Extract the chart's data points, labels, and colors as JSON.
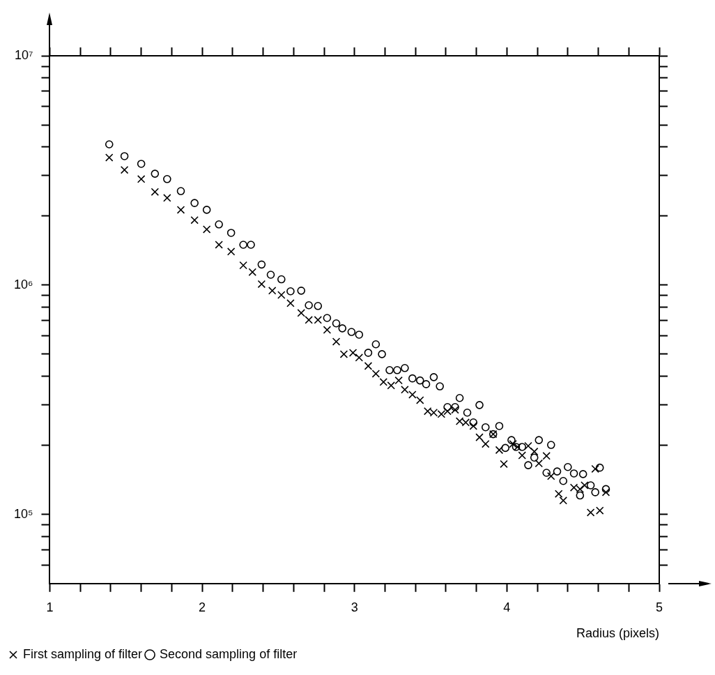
{
  "chart_data": {
    "type": "scatter",
    "xlabel": "Radius (pixels)",
    "log": "y",
    "grid": false,
    "legend": "bottom left",
    "xlim": [
      1,
      5
    ],
    "ylim": [
      50000,
      10000000
    ],
    "xticks": [
      1,
      {
        "value": 1.2,
        "label": null
      },
      {
        "value": 1.4,
        "label": null
      },
      {
        "value": 1.6,
        "label": null
      },
      {
        "value": 1.8,
        "label": null
      },
      2,
      {
        "value": 2.2,
        "label": null
      },
      {
        "value": 2.4,
        "label": null
      },
      {
        "value": 2.6,
        "label": null
      },
      {
        "value": 2.8,
        "label": null
      },
      3,
      {
        "value": 3.2,
        "label": null
      },
      {
        "value": 3.4,
        "label": null
      },
      {
        "value": 3.6,
        "label": null
      },
      {
        "value": 3.8,
        "label": null
      },
      4,
      {
        "value": 4.2,
        "label": null
      },
      {
        "value": 4.4,
        "label": null
      },
      {
        "value": 4.6,
        "label": null
      },
      {
        "value": 4.8,
        "label": null
      },
      5
    ],
    "yticks": [
      {
        "value": 60000,
        "label": null
      },
      {
        "value": 70000,
        "label": null
      },
      {
        "value": 80000,
        "label": null
      },
      {
        "value": 90000,
        "label": null
      },
      {
        "value": 100000,
        "label": "10⁵"
      },
      {
        "value": 200000,
        "label": null
      },
      {
        "value": 300000,
        "label": null
      },
      {
        "value": 400000,
        "label": null
      },
      {
        "value": 500000,
        "label": null
      },
      {
        "value": 600000,
        "label": null
      },
      {
        "value": 700000,
        "label": null
      },
      {
        "value": 800000,
        "label": null
      },
      {
        "value": 900000,
        "label": null
      },
      {
        "value": 1000000,
        "label": "10⁶"
      },
      {
        "value": 2000000,
        "label": null
      },
      {
        "value": 3000000,
        "label": null
      },
      {
        "value": 4000000,
        "label": null
      },
      {
        "value": 5000000,
        "label": null
      },
      {
        "value": 6000000,
        "label": null
      },
      {
        "value": 7000000,
        "label": null
      },
      {
        "value": 8000000,
        "label": null
      },
      {
        "value": 9000000,
        "label": null
      },
      {
        "value": 10000000,
        "label": "10⁷"
      }
    ],
    "series": [
      {
        "name": "First sampling of filter",
        "color": "#000000",
        "marker": "cross",
        "x": [
          1.39,
          1.49,
          1.6,
          1.69,
          1.77,
          1.86,
          1.95,
          2.03,
          2.11,
          2.19,
          2.27,
          2.33,
          2.39,
          2.46,
          2.52,
          2.58,
          2.65,
          2.7,
          2.76,
          2.82,
          2.88,
          2.93,
          2.99,
          3.03,
          3.09,
          3.14,
          3.19,
          3.24,
          3.29,
          3.33,
          3.38,
          3.43,
          3.48,
          3.52,
          3.57,
          3.61,
          3.66,
          3.69,
          3.73,
          3.78,
          3.82,
          3.86,
          3.91,
          3.95,
          3.98,
          4.04,
          4.07,
          4.1,
          4.14,
          4.18,
          4.21,
          4.26,
          4.29,
          4.34,
          4.37,
          4.44,
          4.48,
          4.51,
          4.55,
          4.61,
          4.58,
          4.65
        ],
        "values": [
          3600000,
          3180000,
          2900000,
          2550000,
          2400000,
          2130000,
          1920000,
          1750000,
          1500000,
          1400000,
          1220000,
          1140000,
          1010000,
          946000,
          906000,
          834000,
          756000,
          705000,
          705000,
          638000,
          567000,
          500000,
          507000,
          483000,
          444000,
          411000,
          378000,
          365000,
          384000,
          350000,
          333000,
          315000,
          282000,
          278000,
          274000,
          282000,
          286000,
          255000,
          252000,
          243000,
          217000,
          203000,
          224000,
          191000,
          166000,
          203000,
          197000,
          181000,
          199000,
          188000,
          167000,
          180000,
          147000,
          123000,
          115000,
          131000,
          129000,
          134000,
          102000,
          104000,
          158000,
          125000
        ]
      },
      {
        "name": "Second sampling of filter",
        "color": "#000000",
        "marker": "circle",
        "x": [
          1.39,
          1.49,
          1.6,
          1.69,
          1.77,
          1.86,
          1.95,
          2.03,
          2.11,
          2.19,
          2.27,
          2.32,
          2.39,
          2.45,
          2.52,
          2.58,
          2.65,
          2.7,
          2.76,
          2.82,
          2.88,
          2.92,
          2.98,
          3.03,
          3.09,
          3.14,
          3.18,
          3.23,
          3.28,
          3.33,
          3.38,
          3.43,
          3.47,
          3.52,
          3.56,
          3.61,
          3.66,
          3.69,
          3.74,
          3.78,
          3.82,
          3.86,
          3.91,
          3.95,
          3.99,
          4.03,
          4.06,
          4.1,
          4.14,
          4.18,
          4.21,
          4.26,
          4.29,
          4.33,
          4.37,
          4.4,
          4.44,
          4.48,
          4.5,
          4.55,
          4.58,
          4.61,
          4.65
        ],
        "values": [
          4110000,
          3650000,
          3380000,
          3060000,
          2900000,
          2570000,
          2280000,
          2130000,
          1840000,
          1690000,
          1500000,
          1500000,
          1230000,
          1110000,
          1060000,
          940000,
          946000,
          817000,
          811000,
          719000,
          681000,
          648000,
          625000,
          608000,
          507000,
          552000,
          500000,
          426000,
          426000,
          435000,
          392000,
          384000,
          370000,
          397000,
          362000,
          294000,
          294000,
          322000,
          278000,
          252000,
          300000,
          240000,
          224000,
          243000,
          195000,
          211000,
          197000,
          197000,
          164000,
          177000,
          211000,
          152000,
          201000,
          154000,
          140000,
          161000,
          151000,
          121000,
          150000,
          134000,
          125000,
          160000,
          129000
        ]
      }
    ]
  }
}
